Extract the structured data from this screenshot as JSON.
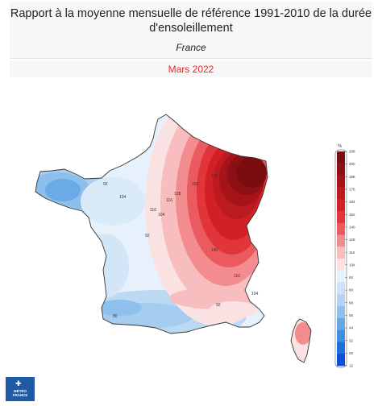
{
  "header": {
    "title_line1": "Rapport à la moyenne mensuelle de référence 1991-2010 de la durée",
    "title_line2": "d'ensoleillement",
    "subtitle": "France"
  },
  "date_label": "Mars 2022",
  "legend": {
    "unit": "%",
    "ticks": [
      "208",
      "200",
      "188",
      "176",
      "164",
      "152",
      "140",
      "128",
      "116",
      "104",
      "92",
      "80",
      "68",
      "56",
      "44",
      "32",
      "20",
      "12"
    ],
    "colors": [
      "#7a0d10",
      "#8c1014",
      "#a6141a",
      "#bd1a20",
      "#d22027",
      "#e0353a",
      "#ea5a5e",
      "#f28c8f",
      "#f8bdbf",
      "#fbe2e2",
      "#e6f1fb",
      "#cde2f6",
      "#b3d3f1",
      "#8fc0ec",
      "#66a8e6",
      "#3d8fe0",
      "#1d6fdc",
      "#0b4fd8"
    ]
  },
  "contour_labels": [
    "92",
    "104",
    "116",
    "92",
    "104",
    "116",
    "128",
    "152",
    "176",
    "188",
    "140",
    "116",
    "104",
    "92",
    "80"
  ],
  "logo": {
    "line1": "MÉTÉO",
    "line2": "FRANCE"
  }
}
